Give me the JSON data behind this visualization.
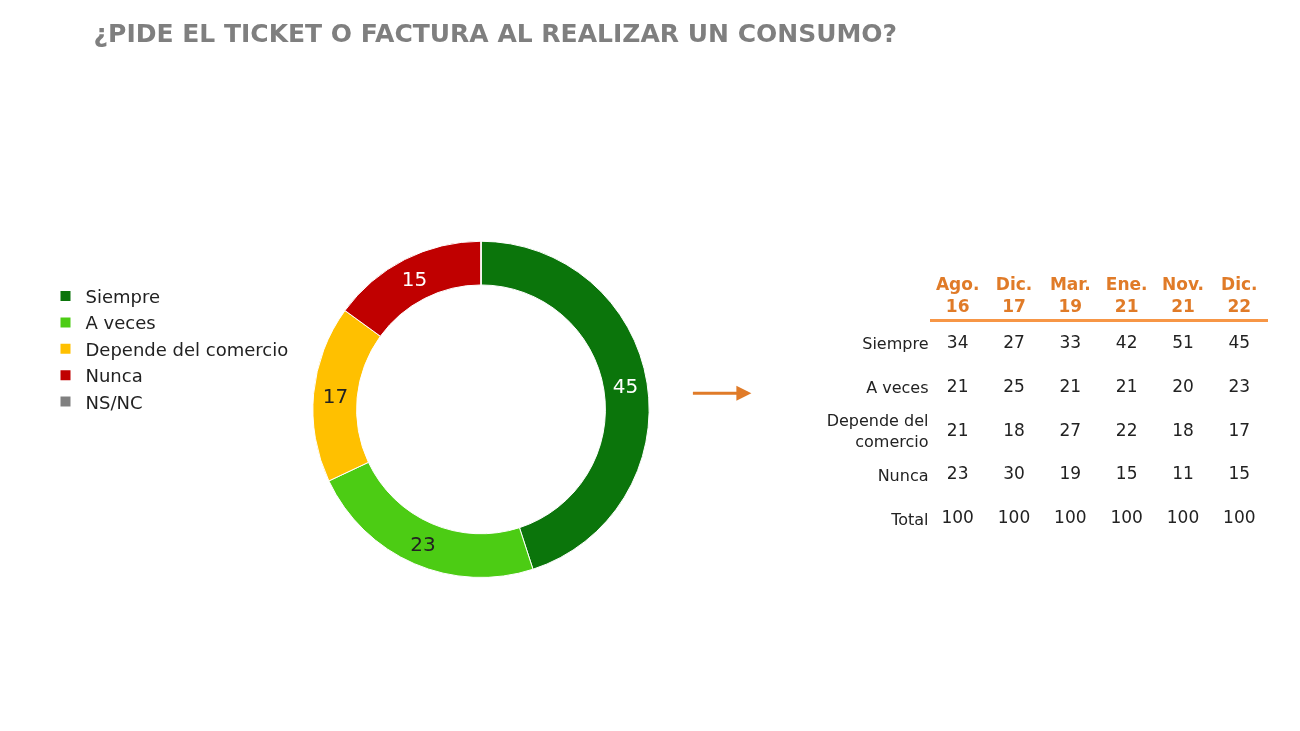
{
  "chart_data": [
    {
      "type": "donut",
      "title": "¿PIDE EL TICKET O FACTURA AL REALIZAR UN CONSUMO?",
      "categories": [
        "Siempre",
        "A veces",
        "Depende del comercio",
        "Nunca",
        "NS/NC"
      ],
      "values": [
        45,
        23,
        17,
        15,
        0
      ],
      "colors": [
        "#0b750b",
        "#4ccc14",
        "#ffc000",
        "#c00000",
        "#808080"
      ],
      "data_labels": true,
      "legend": "left"
    },
    {
      "type": "heatmap",
      "data_labels": true,
      "categories": [
        "Ago. 16",
        "Dic. 17",
        "Mar. 19",
        "Ene. 21",
        "Nov. 21",
        "Dic. 22"
      ],
      "y_categories": [
        "Siempre",
        "A veces",
        "Depende del comercio",
        "Nunca",
        "Total"
      ],
      "cells": [
        [
          34,
          27,
          33,
          42,
          51,
          45
        ],
        [
          21,
          25,
          21,
          21,
          20,
          23
        ],
        [
          21,
          18,
          27,
          22,
          18,
          17
        ],
        [
          23,
          30,
          19,
          15,
          11,
          15
        ],
        [
          100,
          100,
          100,
          100,
          100,
          100
        ]
      ]
    }
  ]
}
